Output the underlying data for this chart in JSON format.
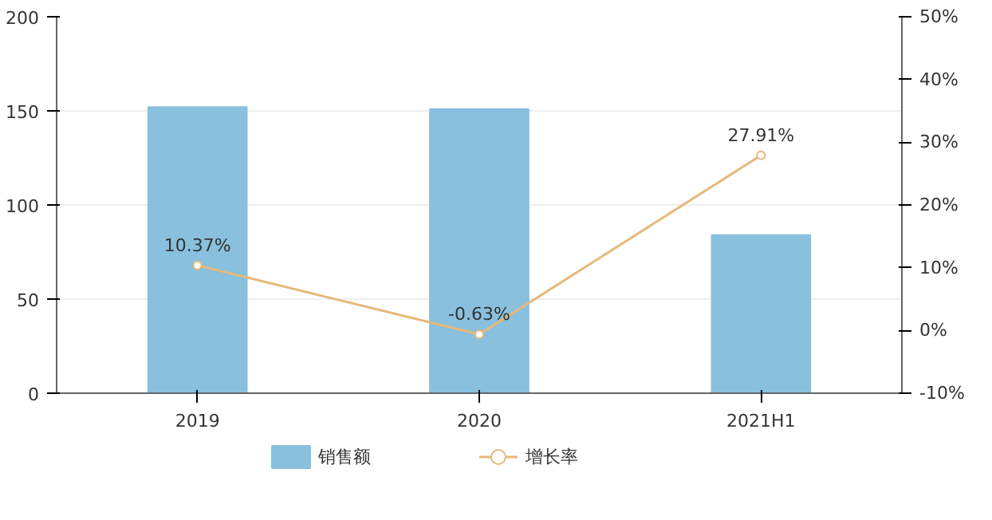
{
  "chart_data": {
    "type": "bar",
    "categories": [
      "2019",
      "2020",
      "2021H1"
    ],
    "series": [
      {
        "name": "销售额",
        "color": "#89c0dd",
        "values": [
          152,
          151,
          84
        ]
      },
      {
        "name": "增长率",
        "type": "line",
        "axis": "y2",
        "color": "#e6b87a",
        "marker": "circle",
        "values": [
          10.37,
          -0.63,
          27.91
        ],
        "value_labels": [
          "10.37%",
          "-0.63%",
          "27.91%"
        ]
      }
    ],
    "ylim": [
      0,
      200
    ],
    "yticks": [
      0,
      50,
      100,
      150,
      200
    ],
    "y2lim": [
      -10,
      50
    ],
    "y2ticks": [
      {
        "value": -10,
        "label": "-10%"
      },
      {
        "value": 0,
        "label": "0%"
      },
      {
        "value": 10,
        "label": "10%"
      },
      {
        "value": 20,
        "label": "20%"
      },
      {
        "value": 30,
        "label": "30%"
      },
      {
        "value": 40,
        "label": "40%"
      },
      {
        "value": 50,
        "label": "50%"
      }
    ],
    "grid": "y",
    "legend": "bottom"
  }
}
